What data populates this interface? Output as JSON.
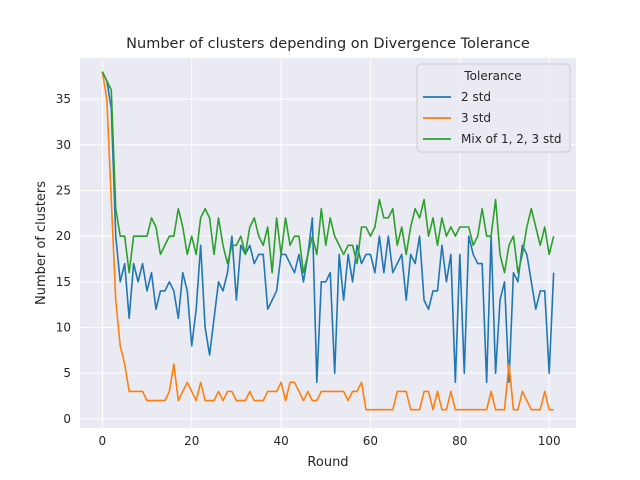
{
  "chart_data": {
    "type": "line",
    "title": "Number of clusters depending on Divergence Tolerance",
    "xlabel": "Round",
    "ylabel": "Number of clusters",
    "xlim": [
      -5,
      106
    ],
    "ylim": [
      -1,
      39.5
    ],
    "xticks": [
      0,
      20,
      40,
      60,
      80,
      100
    ],
    "yticks": [
      0,
      5,
      10,
      15,
      20,
      25,
      30,
      35
    ],
    "grid": true,
    "legend": {
      "title": "Tolerance",
      "placement": "top-right"
    },
    "series": [
      {
        "name": "2 std",
        "color": "#1f77b4",
        "values": [
          38,
          37,
          34,
          20,
          15,
          17,
          11,
          17,
          15,
          17,
          14,
          16,
          12,
          14,
          14,
          15,
          14,
          11,
          16,
          14,
          8,
          12,
          19,
          10,
          7,
          11,
          15,
          14,
          16,
          20,
          13,
          19,
          18,
          19,
          17,
          18,
          18,
          12,
          13,
          14,
          18,
          18,
          17,
          16,
          18,
          15,
          18,
          22,
          4,
          15,
          15,
          16,
          5,
          18,
          13,
          18,
          15,
          19,
          17,
          18,
          18,
          16,
          20,
          16,
          20,
          16,
          17,
          18,
          13,
          18,
          17,
          20,
          13,
          12,
          14,
          14,
          19,
          15,
          18,
          4,
          18,
          5,
          20,
          18,
          17,
          17,
          4,
          20,
          5,
          13,
          15,
          4,
          16,
          15,
          19,
          18,
          15,
          12,
          14,
          14,
          5,
          16
        ]
      },
      {
        "name": "3 std",
        "color": "#ff7f0e",
        "values": [
          38,
          35,
          24,
          13,
          8,
          6,
          3,
          3,
          3,
          3,
          2,
          2,
          2,
          2,
          2,
          3,
          6,
          2,
          3,
          4,
          3,
          2,
          4,
          2,
          2,
          2,
          3,
          2,
          3,
          3,
          2,
          2,
          2,
          3,
          2,
          2,
          2,
          3,
          3,
          3,
          4,
          2,
          4,
          4,
          3,
          2,
          3,
          2,
          2,
          3,
          3,
          3,
          3,
          3,
          3,
          2,
          3,
          3,
          4,
          1,
          1,
          1,
          1,
          1,
          1,
          1,
          3,
          3,
          3,
          1,
          1,
          1,
          3,
          3,
          1,
          3,
          1,
          1,
          3,
          1,
          1,
          1,
          1,
          1,
          1,
          1,
          1,
          3,
          1,
          1,
          1,
          6,
          1,
          1,
          3,
          2,
          1,
          1,
          1,
          3,
          1,
          1
        ]
      },
      {
        "name": "Mix of 1, 2, 3 std",
        "color": "#2ca02c",
        "values": [
          38,
          37,
          36,
          23,
          20,
          20,
          16,
          20,
          20,
          20,
          20,
          22,
          21,
          18,
          19,
          20,
          20,
          23,
          21,
          18,
          20,
          18,
          22,
          23,
          22,
          18,
          22,
          19,
          17,
          19,
          19,
          20,
          18,
          21,
          22,
          20,
          19,
          21,
          16,
          22,
          18,
          22,
          19,
          20,
          20,
          16,
          18,
          20,
          18,
          23,
          19,
          22,
          20,
          19,
          18,
          19,
          19,
          17,
          21,
          21,
          20,
          21,
          24,
          22,
          22,
          23,
          19,
          21,
          18,
          21,
          23,
          22,
          24,
          20,
          22,
          19,
          22,
          20,
          21,
          20,
          21,
          21,
          21,
          19,
          20,
          23,
          20,
          20,
          24,
          18,
          16,
          19,
          20,
          16,
          18,
          21,
          23,
          21,
          19,
          21,
          18,
          20
        ]
      }
    ]
  }
}
